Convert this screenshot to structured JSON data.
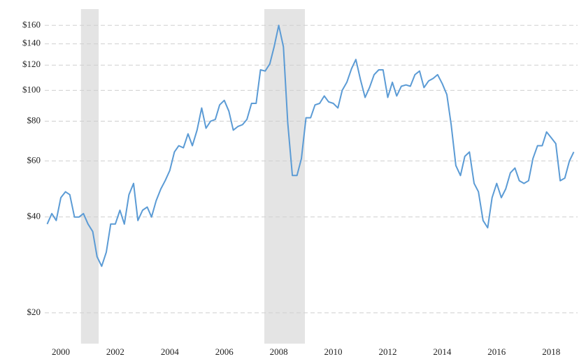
{
  "chart_data": {
    "type": "line",
    "log_scale": true,
    "grid": true,
    "color": "#5b9bd5",
    "recession_color": "#e4e4e4",
    "x": [
      1999.5,
      1999.67,
      1999.83,
      2000,
      2000.17,
      2000.33,
      2000.5,
      2000.67,
      2000.83,
      2001,
      2001.17,
      2001.33,
      2001.5,
      2001.67,
      2001.83,
      2002,
      2002.17,
      2002.33,
      2002.5,
      2002.67,
      2002.83,
      2003,
      2003.17,
      2003.33,
      2003.5,
      2003.67,
      2003.83,
      2004,
      2004.17,
      2004.33,
      2004.5,
      2004.67,
      2004.83,
      2005,
      2005.17,
      2005.33,
      2005.5,
      2005.67,
      2005.83,
      2006,
      2006.17,
      2006.33,
      2006.5,
      2006.67,
      2006.83,
      2007,
      2007.17,
      2007.33,
      2007.5,
      2007.67,
      2007.83,
      2008,
      2008.17,
      2008.33,
      2008.5,
      2008.67,
      2008.83,
      2009,
      2009.17,
      2009.33,
      2009.5,
      2009.67,
      2009.83,
      2010,
      2010.17,
      2010.33,
      2010.5,
      2010.67,
      2010.83,
      2011,
      2011.17,
      2011.33,
      2011.5,
      2011.67,
      2011.83,
      2012,
      2012.17,
      2012.33,
      2012.5,
      2012.67,
      2012.83,
      2013,
      2013.17,
      2013.33,
      2013.5,
      2013.67,
      2013.83,
      2014,
      2014.17,
      2014.33,
      2014.5,
      2014.67,
      2014.83,
      2015,
      2015.17,
      2015.33,
      2015.5,
      2015.67,
      2015.83,
      2016,
      2016.17,
      2016.33,
      2016.5,
      2016.67,
      2016.83,
      2017,
      2017.17,
      2017.33,
      2017.5,
      2017.67,
      2017.83,
      2018,
      2018.17,
      2018.33,
      2018.5,
      2018.67,
      2018.83
    ],
    "values": [
      38,
      41,
      39,
      46,
      48,
      47,
      40,
      40,
      41,
      38,
      36,
      30,
      28,
      31,
      38,
      38,
      42,
      38,
      47,
      51,
      39,
      42,
      43,
      40,
      45,
      49,
      52,
      56,
      64,
      67,
      66,
      73,
      67,
      75,
      88,
      76,
      80,
      81,
      90,
      93,
      86,
      75,
      77,
      78,
      81,
      91,
      91,
      116,
      115,
      121,
      137,
      160,
      137,
      79,
      54,
      54,
      61,
      82,
      82,
      90,
      91,
      96,
      92,
      91,
      88,
      100,
      106,
      117,
      125,
      108,
      95,
      102,
      112,
      116,
      116,
      95,
      106,
      96,
      103,
      104,
      103,
      112,
      115,
      102,
      107,
      109,
      112,
      105,
      97,
      78,
      58,
      54,
      62,
      64,
      51,
      48,
      39,
      37,
      46,
      51,
      46,
      49,
      55,
      57,
      52,
      51,
      52,
      61,
      67,
      67,
      74,
      71,
      68,
      52,
      53,
      60,
      64
    ],
    "recessions": [
      [
        2000.74,
        2001.39
      ],
      [
        2007.47,
        2008.96
      ]
    ],
    "xlim": [
      1999.41,
      2018.97
    ],
    "xticks": [
      2000,
      2002,
      2004,
      2006,
      2008,
      2010,
      2012,
      2014,
      2016,
      2018
    ],
    "ylim": [
      16,
      180
    ],
    "yticks": [
      {
        "value": 20,
        "label": "$20"
      },
      {
        "value": 40,
        "label": "$40"
      },
      {
        "value": 60,
        "label": "$60"
      },
      {
        "value": 80,
        "label": "$80"
      },
      {
        "value": 100,
        "label": "$100"
      },
      {
        "value": 120,
        "label": "$120"
      },
      {
        "value": 140,
        "label": "$140"
      },
      {
        "value": 160,
        "label": "$160"
      }
    ]
  }
}
